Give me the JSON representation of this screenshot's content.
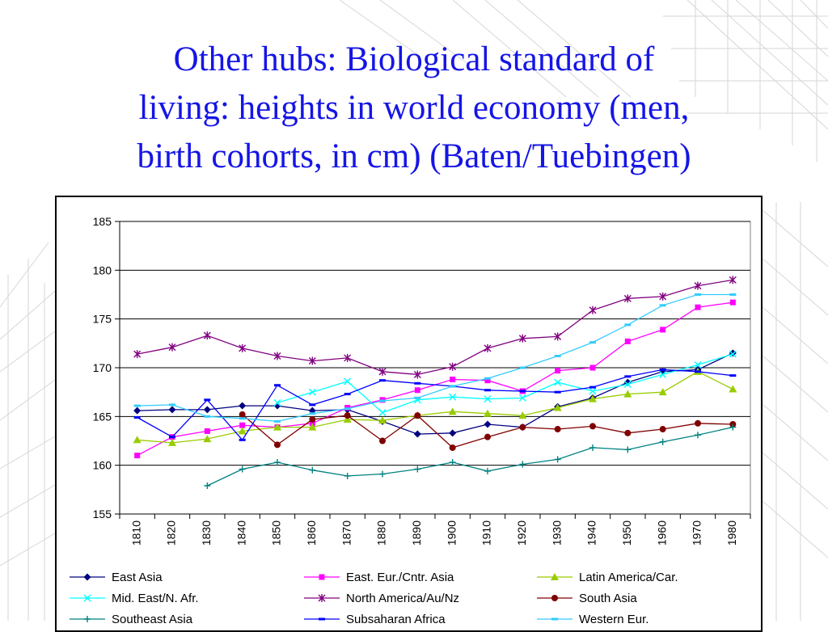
{
  "slide": {
    "title_lines": [
      "Other hubs: Biological standard of",
      "living: heights in world economy (men,",
      "birth cohorts, in cm) (Baten/Tuebingen)"
    ]
  },
  "chart_data": {
    "type": "line",
    "title": "",
    "xlabel": "",
    "ylabel": "",
    "x": [
      1810,
      1820,
      1830,
      1840,
      1850,
      1860,
      1870,
      1880,
      1890,
      1900,
      1910,
      1920,
      1930,
      1940,
      1950,
      1960,
      1970,
      1980
    ],
    "ylim": [
      155,
      185
    ],
    "yticks": [
      155,
      160,
      165,
      170,
      175,
      180,
      185
    ],
    "grid": true,
    "legend_position": "bottom",
    "series": [
      {
        "name": "East Asia",
        "color": "#000080",
        "marker": "diamond",
        "values": [
          165.6,
          165.7,
          165.7,
          166.1,
          166.1,
          165.6,
          165.7,
          164.5,
          163.2,
          163.3,
          164.2,
          163.9,
          166.0,
          166.9,
          168.5,
          169.6,
          169.8,
          171.5
        ]
      },
      {
        "name": "East. Eur./Cntr. Asia",
        "color": "#ff00ff",
        "marker": "square",
        "values": [
          161.0,
          162.9,
          163.5,
          164.1,
          163.9,
          164.3,
          165.9,
          166.7,
          167.7,
          168.8,
          168.7,
          167.6,
          169.7,
          170.0,
          172.7,
          173.9,
          176.2,
          176.7
        ]
      },
      {
        "name": "Latin America/Car.",
        "color": "#99cc00",
        "marker": "triangle",
        "values": [
          162.6,
          162.3,
          162.7,
          163.5,
          163.9,
          163.9,
          164.7,
          164.6,
          165.1,
          165.5,
          165.3,
          165.1,
          165.9,
          166.8,
          167.3,
          167.5,
          169.6,
          167.8
        ]
      },
      {
        "name": "Mid. East/N. Afr.",
        "color": "#00ffff",
        "marker": "x",
        "values": [
          null,
          null,
          null,
          null,
          166.4,
          167.5,
          168.6,
          165.4,
          166.7,
          167.0,
          166.8,
          166.9,
          168.5,
          167.6,
          168.3,
          169.3,
          170.3,
          171.4
        ]
      },
      {
        "name": "North America/Au/Nz",
        "color": "#800080",
        "marker": "star",
        "values": [
          171.4,
          172.1,
          173.3,
          172.0,
          171.2,
          170.7,
          171.0,
          169.6,
          169.3,
          170.1,
          172.0,
          173.0,
          173.2,
          175.9,
          177.1,
          177.3,
          178.4,
          179.0
        ]
      },
      {
        "name": "South Asia",
        "color": "#800000",
        "marker": "circle",
        "values": [
          null,
          null,
          null,
          165.2,
          162.1,
          164.7,
          165.1,
          162.5,
          165.1,
          161.8,
          162.9,
          163.9,
          163.7,
          164.0,
          163.3,
          163.7,
          164.3,
          164.2
        ]
      },
      {
        "name": "Southeast Asia",
        "color": "#008080",
        "marker": "plus",
        "values": [
          null,
          null,
          157.9,
          159.6,
          160.3,
          159.5,
          158.9,
          159.1,
          159.6,
          160.3,
          159.4,
          160.1,
          160.6,
          161.8,
          161.6,
          162.4,
          163.1,
          163.9
        ]
      },
      {
        "name": "Subsaharan Africa",
        "color": "#0000ff",
        "marker": "dash",
        "values": [
          164.9,
          162.9,
          166.7,
          162.6,
          168.2,
          166.2,
          167.3,
          168.7,
          168.4,
          168.1,
          167.7,
          167.6,
          167.5,
          168.0,
          169.1,
          169.8,
          169.6,
          169.2
        ]
      },
      {
        "name": "Western Eur.",
        "color": "#33ccff",
        "marker": "dash",
        "values": [
          166.1,
          166.2,
          165.0,
          164.8,
          164.5,
          165.3,
          165.8,
          166.6,
          166.9,
          168.1,
          168.9,
          170.0,
          171.2,
          172.6,
          174.4,
          176.4,
          177.5,
          177.5
        ]
      }
    ]
  }
}
